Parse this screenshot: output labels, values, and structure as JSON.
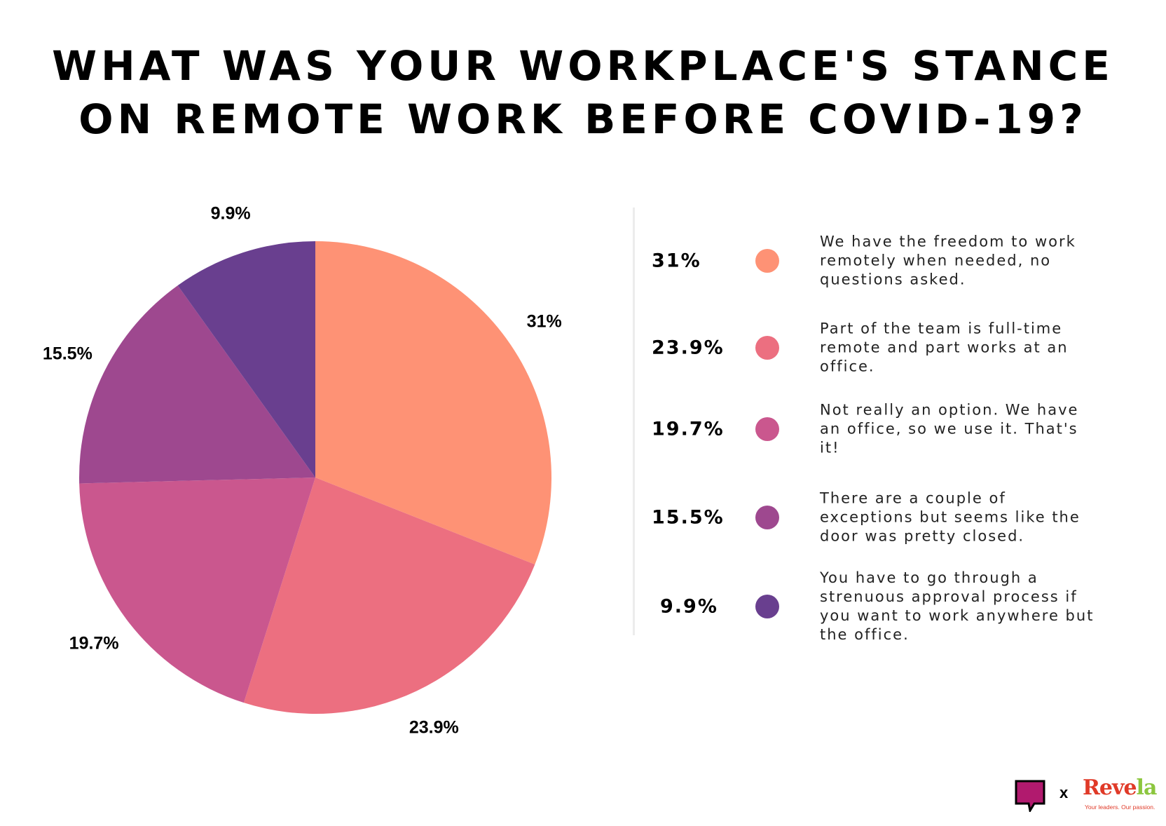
{
  "title_lines": [
    "WHAT WAS YOUR WORKPLACE'S STANCE",
    "ON REMOTE WORK BEFORE COVID-19?"
  ],
  "chart_data": {
    "type": "pie",
    "title": "WHAT WAS YOUR WORKPLACE'S STANCE ON REMOTE WORK BEFORE COVID-19?",
    "slices": [
      {
        "label": "31%",
        "value": 31,
        "color": "#fe9275",
        "description": "We have the freedom to work remotely when needed, no questions asked."
      },
      {
        "label": "23.9%",
        "value": 23.9,
        "color": "#ec6f80",
        "description": "Part of the team is full-time remote and part works at an office."
      },
      {
        "label": "19.7%",
        "value": 19.7,
        "color": "#ca578e",
        "description": "Not really an option. We have an office, so we use it. That's it!"
      },
      {
        "label": "15.5%",
        "value": 15.5,
        "color": "#9e488f",
        "description": "There are a couple of exceptions but seems like the door was pretty closed."
      },
      {
        "label": "9.9%",
        "value": 9.9,
        "color": "#693f8f",
        "description": "You have to go through a strenuous approval process if you want to work anywhere but the office."
      }
    ],
    "start": "12 o'clock",
    "direction": "clockwise",
    "legend_placement": "right"
  },
  "logos": {
    "separator": "x",
    "brand": "Reve",
    "brand_accent": "la",
    "tagline": "Your leaders. Our passion.",
    "chat_icon_color": "#b11a6e"
  }
}
